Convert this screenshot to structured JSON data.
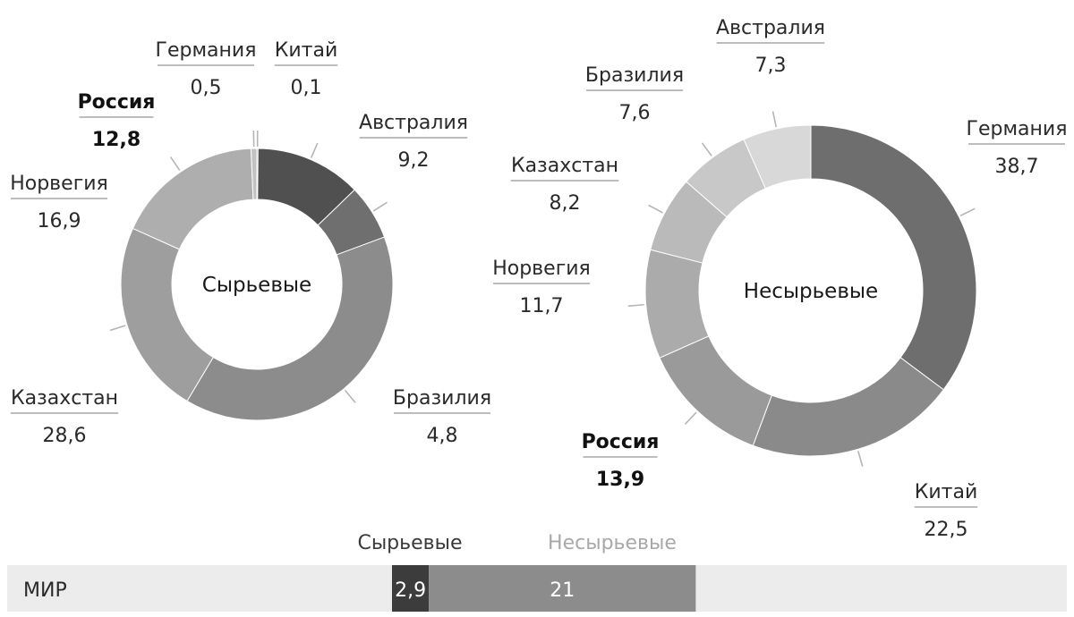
{
  "chart_data": [
    {
      "type": "pie",
      "center_label": "Сырьевые",
      "slices": [
        {
          "name": "Китай",
          "value": 0.1,
          "color": "#3a3a3a",
          "bold": false
        },
        {
          "name": "Австралия",
          "value": 9.2,
          "color": "#505050",
          "bold": false
        },
        {
          "name": "Бразилия",
          "value": 4.8,
          "color": "#6f6f6f",
          "bold": false
        },
        {
          "name": "Казахстан",
          "value": 28.6,
          "color": "#8c8c8c",
          "bold": false
        },
        {
          "name": "Норвегия",
          "value": 16.9,
          "color": "#9e9e9e",
          "bold": false
        },
        {
          "name": "Россия",
          "value": 12.8,
          "color": "#aeaeae",
          "bold": true
        },
        {
          "name": "Германия",
          "value": 0.5,
          "color": "#c2c2c2",
          "bold": false
        }
      ]
    },
    {
      "type": "pie",
      "center_label": "Несырьевые",
      "slices": [
        {
          "name": "Германия",
          "value": 38.7,
          "color": "#6e6e6e",
          "bold": false
        },
        {
          "name": "Китай",
          "value": 22.5,
          "color": "#8a8a8a",
          "bold": false
        },
        {
          "name": "Россия",
          "value": 13.9,
          "color": "#9a9a9a",
          "bold": true
        },
        {
          "name": "Норвегия",
          "value": 11.7,
          "color": "#ababab",
          "bold": false
        },
        {
          "name": "Казахстан",
          "value": 8.2,
          "color": "#bababa",
          "bold": false
        },
        {
          "name": "Бразилия",
          "value": 7.6,
          "color": "#c8c8c8",
          "bold": false
        },
        {
          "name": "Австралия",
          "value": 7.3,
          "color": "#d8d8d8",
          "bold": false
        }
      ]
    },
    {
      "type": "bar",
      "orientation": "horizontal",
      "stacked": true,
      "categories": [
        "МИР"
      ],
      "series": [
        {
          "name": "Сырьевые",
          "values": [
            2.9
          ],
          "label": "2,9",
          "color": "#3c3c3c",
          "label_color": "#3a3a3a"
        },
        {
          "name": "Несырьевые",
          "values": [
            21
          ],
          "label": "21",
          "color": "#8c8c8c",
          "label_color": "#a8a8a8"
        }
      ]
    }
  ]
}
